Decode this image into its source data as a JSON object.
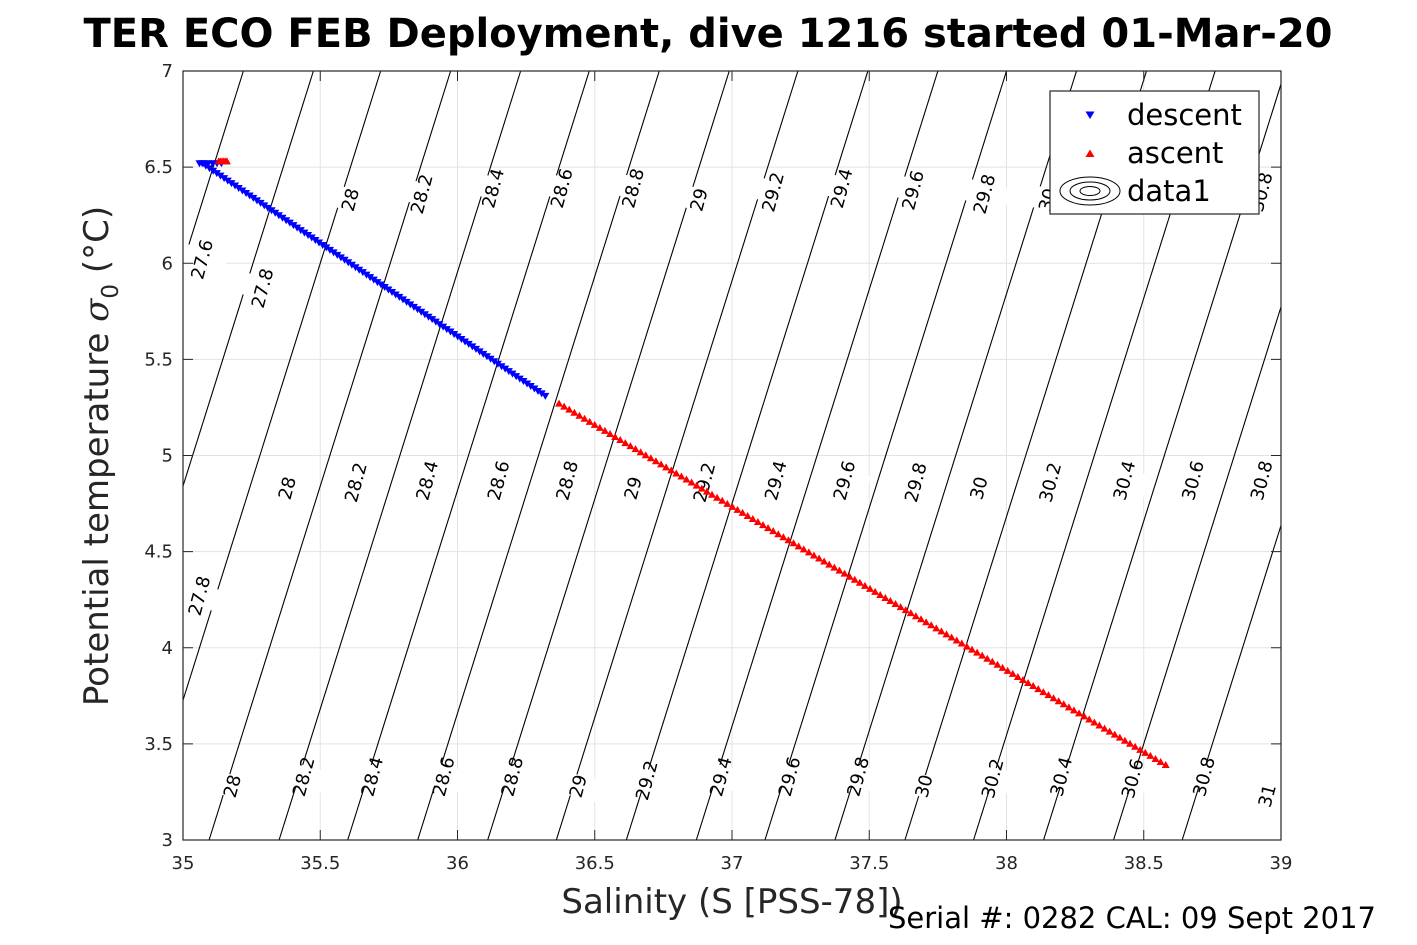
{
  "figure_title": "TER ECO FEB Deployment, dive 1216 started 01-Mar-20",
  "footer_text": "Serial #: 0282  CAL: 09 Sept 2017",
  "colors": {
    "descent": "#0000ff",
    "ascent": "#ff0000",
    "contour": "#000000",
    "grid": "#e3e3e3",
    "axis": "#262626"
  },
  "chart_data": {
    "type": "scatter",
    "title": "TER ECO FEB Deployment, dive 1216 started 01-Mar-20",
    "xlabel": "Salinity (S [PSS-78])",
    "ylabel_main": "Potential temperature ",
    "ylabel_sym": "σ",
    "ylabel_sub": "0",
    "ylabel_unit": " (°C)",
    "xlim": [
      35,
      39
    ],
    "ylim": [
      3,
      7
    ],
    "xticks": [
      35,
      35.5,
      36,
      36.5,
      37,
      37.5,
      38,
      38.5,
      39
    ],
    "xtick_labels": [
      "35",
      "35.5",
      "36",
      "36.5",
      "37",
      "37.5",
      "38",
      "38.5",
      "39"
    ],
    "yticks": [
      3,
      3.5,
      4,
      4.5,
      5,
      5.5,
      6,
      6.5,
      7
    ],
    "ytick_labels": [
      "3",
      "3.5",
      "4",
      "4.5",
      "5",
      "5.5",
      "6",
      "6.5",
      "7"
    ],
    "grid": true,
    "legend_position": "top-right",
    "legend": [
      {
        "name": "descent",
        "marker": "triangle-down",
        "color": "#0000ff"
      },
      {
        "name": "ascent",
        "marker": "triangle-up",
        "color": "#ff0000"
      },
      {
        "name": "data1",
        "marker": "contour-ellipse",
        "color": "#000000"
      }
    ],
    "series": [
      {
        "name": "descent",
        "marker": "triangle-down",
        "color": "#0000ff",
        "start": {
          "x": 35.07,
          "y": 6.52
        },
        "end": {
          "x": 36.32,
          "y": 5.31
        },
        "points": 95,
        "cluster": {
          "x_range": [
            35.06,
            35.14
          ],
          "y": 6.52
        }
      },
      {
        "name": "ascent",
        "marker": "triangle-up",
        "color": "#ff0000",
        "start": {
          "x": 36.37,
          "y": 5.27
        },
        "end": {
          "x": 38.58,
          "y": 3.39
        },
        "points": 120,
        "cluster": {
          "x_range": [
            35.13,
            35.16
          ],
          "y": 6.53
        }
      }
    ],
    "contours": {
      "levels": [
        27.6,
        27.8,
        28,
        28.2,
        28.4,
        28.6,
        28.8,
        29,
        29.2,
        29.4,
        29.6,
        29.8,
        30,
        30.2,
        30.4,
        30.6,
        30.8,
        31
      ],
      "salinity_at_T5": {
        "27.6": 34.78,
        "27.8": 35.035,
        "28": 35.28,
        "28.2": 35.535,
        "28.4": 35.79,
        "28.6": 36.04,
        "28.8": 36.295,
        "29": 36.55,
        "29.2": 36.8,
        "29.4": 37.055,
        "29.6": 37.31,
        "29.8": 37.56,
        "30": 37.815,
        "30.2": 38.07,
        "30.4": 38.32,
        "30.6": 38.575,
        "30.8": 38.83,
        "31": 39.08
      },
      "slope_S_per_degC": 0.22,
      "labels": [
        {
          "text": "27.6",
          "x": 35.07,
          "y": 6.02
        },
        {
          "text": "27.8",
          "x": 35.29,
          "y": 5.87
        },
        {
          "text": "28",
          "x": 35.61,
          "y": 6.33
        },
        {
          "text": "28.2",
          "x": 35.87,
          "y": 6.36
        },
        {
          "text": "28.4",
          "x": 36.13,
          "y": 6.39
        },
        {
          "text": "28.6",
          "x": 36.38,
          "y": 6.39
        },
        {
          "text": "28.8",
          "x": 36.64,
          "y": 6.39
        },
        {
          "text": "29",
          "x": 36.88,
          "y": 6.33
        },
        {
          "text": "29.2",
          "x": 37.15,
          "y": 6.37
        },
        {
          "text": "29.4",
          "x": 37.4,
          "y": 6.39
        },
        {
          "text": "29.6",
          "x": 37.66,
          "y": 6.38
        },
        {
          "text": "29.8",
          "x": 37.92,
          "y": 6.36
        },
        {
          "text": "30",
          "x": 38.15,
          "y": 6.33
        },
        {
          "text": "30.8",
          "x": 38.93,
          "y": 6.37
        },
        {
          "text": "28",
          "x": 35.38,
          "y": 4.83
        },
        {
          "text": "28.2",
          "x": 35.63,
          "y": 4.86
        },
        {
          "text": "28.4",
          "x": 35.89,
          "y": 4.87
        },
        {
          "text": "28.6",
          "x": 36.15,
          "y": 4.87
        },
        {
          "text": "28.8",
          "x": 36.4,
          "y": 4.87
        },
        {
          "text": "29",
          "x": 36.64,
          "y": 4.83
        },
        {
          "text": "29.2",
          "x": 36.9,
          "y": 4.86
        },
        {
          "text": "29.4",
          "x": 37.16,
          "y": 4.87
        },
        {
          "text": "29.6",
          "x": 37.41,
          "y": 4.87
        },
        {
          "text": "29.8",
          "x": 37.67,
          "y": 4.86
        },
        {
          "text": "30",
          "x": 37.9,
          "y": 4.83
        },
        {
          "text": "30.2",
          "x": 38.16,
          "y": 4.86
        },
        {
          "text": "30.4",
          "x": 38.43,
          "y": 4.87
        },
        {
          "text": "30.6",
          "x": 38.68,
          "y": 4.87
        },
        {
          "text": "30.8",
          "x": 38.93,
          "y": 4.87
        },
        {
          "text": "27.8",
          "x": 35.06,
          "y": 4.27
        },
        {
          "text": "28",
          "x": 35.18,
          "y": 3.28
        },
        {
          "text": "28.2",
          "x": 35.44,
          "y": 3.33
        },
        {
          "text": "28.4",
          "x": 35.69,
          "y": 3.33
        },
        {
          "text": "28.6",
          "x": 35.95,
          "y": 3.33
        },
        {
          "text": "28.8",
          "x": 36.2,
          "y": 3.33
        },
        {
          "text": "29",
          "x": 36.44,
          "y": 3.28
        },
        {
          "text": "29.2",
          "x": 36.69,
          "y": 3.31
        },
        {
          "text": "29.4",
          "x": 36.96,
          "y": 3.33
        },
        {
          "text": "29.6",
          "x": 37.21,
          "y": 3.33
        },
        {
          "text": "29.8",
          "x": 37.46,
          "y": 3.33
        },
        {
          "text": "30",
          "x": 37.7,
          "y": 3.28
        },
        {
          "text": "30.2",
          "x": 37.95,
          "y": 3.32
        },
        {
          "text": "30.4",
          "x": 38.2,
          "y": 3.33
        },
        {
          "text": "30.6",
          "x": 38.46,
          "y": 3.32
        },
        {
          "text": "30.8",
          "x": 38.72,
          "y": 3.33
        },
        {
          "text": "31",
          "x": 38.95,
          "y": 3.23
        }
      ]
    }
  }
}
